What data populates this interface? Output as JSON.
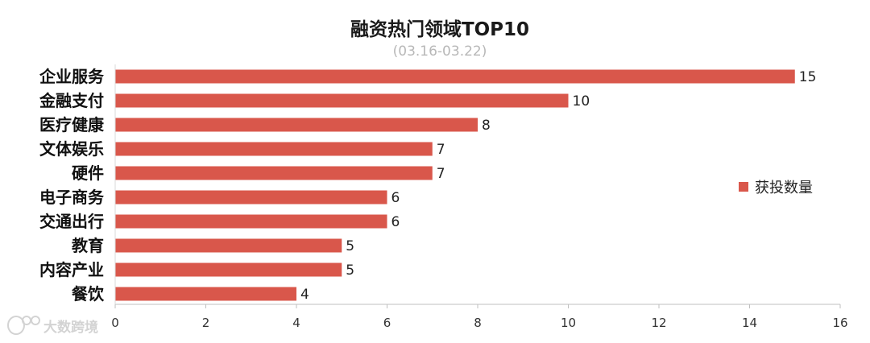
{
  "chart_data": {
    "type": "bar",
    "orientation": "horizontal",
    "title": "融资热门领域TOP10",
    "subtitle": "(03.16-03.22)",
    "categories": [
      "企业服务",
      "金融支付",
      "医疗健康",
      "文体娱乐",
      "硬件",
      "电子商务",
      "交通出行",
      "教育",
      "内容产业",
      "餐饮"
    ],
    "series": [
      {
        "name": "获投数量",
        "values": [
          15,
          10,
          8,
          7,
          7,
          6,
          6,
          5,
          5,
          4
        ],
        "color": "#d9574b"
      }
    ],
    "xlim": [
      0,
      16
    ],
    "xticks": [
      0,
      2,
      4,
      6,
      8,
      10,
      12,
      14,
      16
    ],
    "xlabel": "",
    "ylabel": "",
    "grid": false,
    "legend": "right",
    "data_labels": true
  },
  "watermark": {
    "text": "大数跨境",
    "icon": "logo-icon"
  }
}
